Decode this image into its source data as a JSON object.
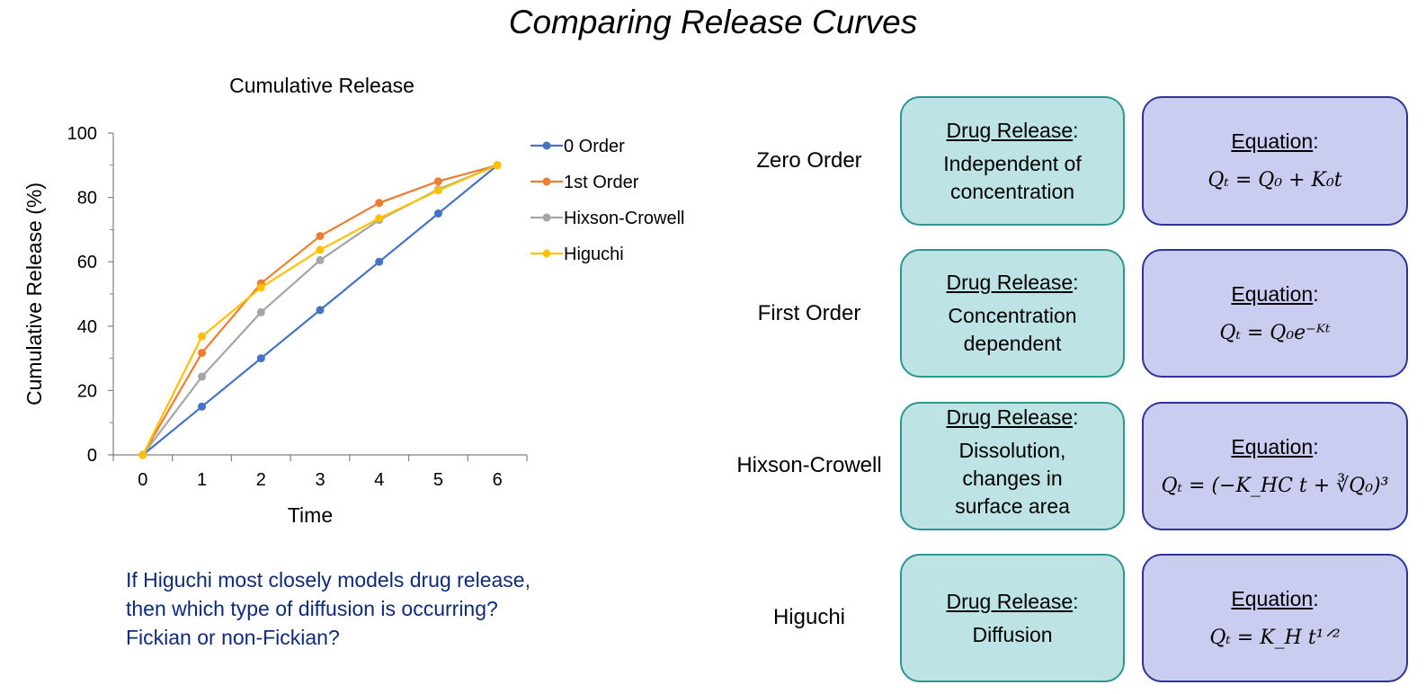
{
  "title": "Comparing Release Curves",
  "chart_data": {
    "type": "line",
    "title": "Cumulative Release",
    "xlabel": "Time",
    "ylabel": "Cumulative Release (%)",
    "x": [
      0,
      1,
      2,
      3,
      4,
      5,
      6
    ],
    "xlim": [
      -0.5,
      6.5
    ],
    "ylim": [
      0,
      100
    ],
    "yticks": [
      0,
      20,
      40,
      60,
      80,
      100
    ],
    "grid": false,
    "legend_position": "right",
    "series": [
      {
        "name": "0 Order",
        "color": "#4472c4",
        "values": [
          0,
          15,
          30,
          45,
          60,
          75,
          90
        ]
      },
      {
        "name": "1st Order",
        "color": "#ed7d31",
        "values": [
          0,
          31.7,
          53.3,
          68,
          78.3,
          85,
          90
        ]
      },
      {
        "name": "Hixson-Crowell",
        "color": "#a5a5a5",
        "values": [
          0,
          24.3,
          44.3,
          60.5,
          73,
          82.5,
          90
        ]
      },
      {
        "name": "Higuchi",
        "color": "#ffc000",
        "values": [
          0,
          36.8,
          52,
          63.7,
          73.5,
          82.2,
          90
        ]
      }
    ]
  },
  "question": {
    "lines": [
      "If Higuchi most closely models drug release,",
      "then which type of diffusion is occurring?",
      "Fickian or non-Fickian?"
    ],
    "color": "#0f2a78"
  },
  "models": [
    {
      "name": "Zero Order",
      "release_heading": "Drug Release",
      "release": [
        "Independent of",
        "concentration"
      ],
      "equation_heading": "Equation",
      "equation": "Qₜ = Q₀ + K₀t"
    },
    {
      "name": "First Order",
      "release_heading": "Drug Release",
      "release": [
        "Concentration",
        "dependent"
      ],
      "equation_heading": "Equation",
      "equation": "Qₜ = Q₀e⁻ᴷᵗ"
    },
    {
      "name": "Hixson-Crowell",
      "release_heading": "Drug Release",
      "release": [
        "Dissolution,",
        "changes in",
        "surface area"
      ],
      "equation_heading": "Equation",
      "equation": "Qₜ = (−K_HC t + ∛Q₀)³"
    },
    {
      "name": "Higuchi",
      "release_heading": "Drug Release",
      "release": [
        "Diffusion"
      ],
      "equation_heading": "Equation",
      "equation": "Qₜ = K_H t¹ᐟ²"
    }
  ],
  "colors": {
    "release_box_fill": "#bde3e4",
    "release_box_border": "#2f9494",
    "equation_box_fill": "#cacdf0",
    "equation_box_border": "#2d3494"
  }
}
